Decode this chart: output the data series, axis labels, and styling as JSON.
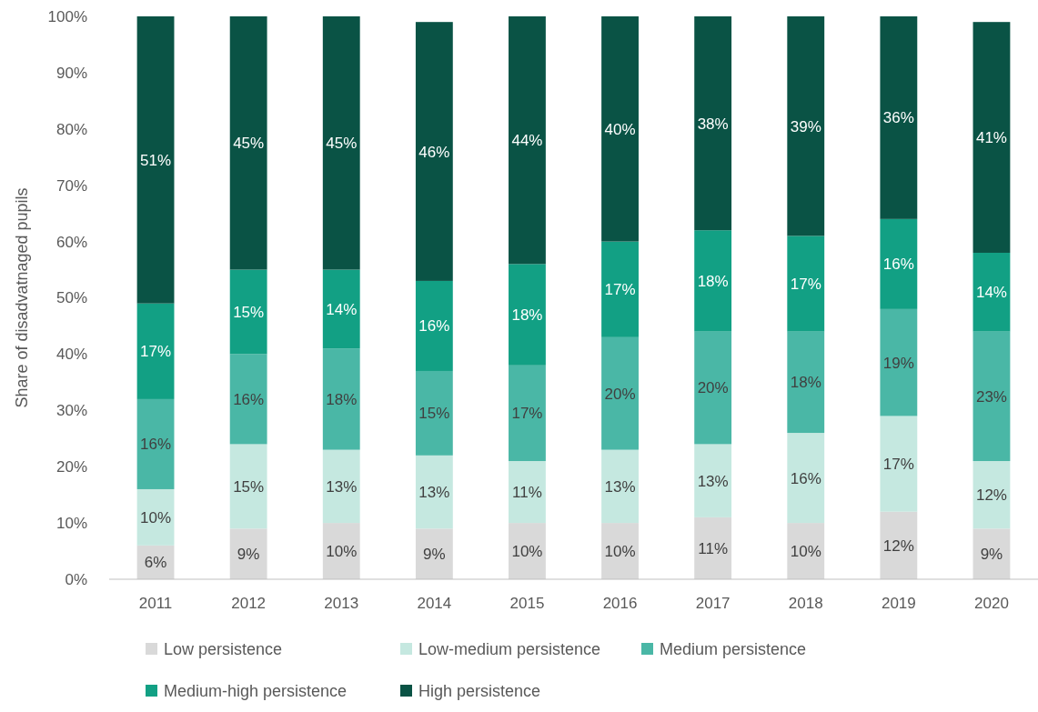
{
  "chart_data": {
    "type": "bar",
    "stacked": true,
    "ylabel": "Share of disadvatnaged pupils",
    "categories": [
      "2011",
      "2012",
      "2013",
      "2014",
      "2015",
      "2016",
      "2017",
      "2018",
      "2019",
      "2020"
    ],
    "series": [
      {
        "name": "Low persistence",
        "color": "#d9d9d9",
        "values": [
          6,
          9,
          10,
          9,
          10,
          10,
          11,
          10,
          12,
          9
        ],
        "value_labels": [
          "6%",
          "9%",
          "10%",
          "9%",
          "10%",
          "10%",
          "11%",
          "10%",
          "12%",
          "9%"
        ]
      },
      {
        "name": "Low-medium persistence",
        "color": "#c5e8e0",
        "values": [
          10,
          15,
          13,
          13,
          11,
          13,
          13,
          16,
          17,
          12
        ],
        "value_labels": [
          "10%",
          "15%",
          "13%",
          "13%",
          "11%",
          "13%",
          "13%",
          "16%",
          "17%",
          "12%"
        ]
      },
      {
        "name": "Medium persistence",
        "color": "#4ab7a6",
        "values": [
          16,
          16,
          18,
          15,
          17,
          20,
          20,
          18,
          19,
          23
        ],
        "value_labels": [
          "16%",
          "16%",
          "18%",
          "15%",
          "17%",
          "20%",
          "20%",
          "18%",
          "19%",
          "23%"
        ]
      },
      {
        "name": "Medium-high persistence",
        "color": "#12a084",
        "values": [
          17,
          15,
          14,
          16,
          18,
          17,
          18,
          17,
          16,
          14
        ],
        "value_labels": [
          "17%",
          "15%",
          "14%",
          "16%",
          "18%",
          "17%",
          "18%",
          "17%",
          "16%",
          "14%"
        ]
      },
      {
        "name": "High persistence",
        "color": "#0a5345",
        "values": [
          51,
          45,
          45,
          46,
          44,
          40,
          38,
          39,
          36,
          41
        ],
        "value_labels": [
          "51%",
          "45%",
          "45%",
          "46%",
          "44%",
          "40%",
          "38%",
          "39%",
          "36%",
          "41%"
        ]
      }
    ],
    "ylim": [
      0,
      100
    ],
    "yticks": [
      {
        "value": 0,
        "label": "0%"
      },
      {
        "value": 10,
        "label": "10%"
      },
      {
        "value": 20,
        "label": "20%"
      },
      {
        "value": 30,
        "label": "30%"
      },
      {
        "value": 40,
        "label": "40%"
      },
      {
        "value": 50,
        "label": "50%"
      },
      {
        "value": 60,
        "label": "60%"
      },
      {
        "value": 70,
        "label": "70%"
      },
      {
        "value": 80,
        "label": "80%"
      },
      {
        "value": 90,
        "label": "90%"
      },
      {
        "value": 100,
        "label": "100%"
      }
    ],
    "legend": "bottom"
  }
}
